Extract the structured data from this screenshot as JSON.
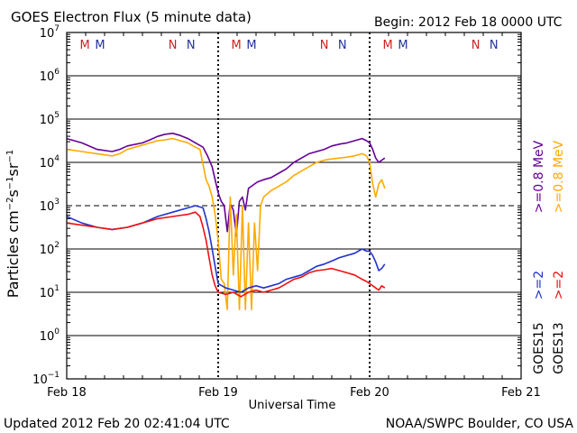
{
  "header": {
    "title": "GOES Electron Flux (5 minute data)",
    "begin": "Begin: 2012 Feb 18 0000 UTC"
  },
  "footer": {
    "updated": "Updated 2012 Feb 20 02:41:04 UTC",
    "credit": "NOAA/SWPC Boulder, CO USA"
  },
  "colors": {
    "goes15_2mev": "#2233cc",
    "goes13_2mev": "#ee1111",
    "goes15_08mev": "#660099",
    "goes13_08mev": "#ffaa00",
    "marker_m": "#cc2222",
    "marker_n_red": "#cc2222",
    "marker_n_blue": "#223399"
  },
  "chart_data": {
    "type": "line",
    "title": "GOES Electron Flux (5 minute data)",
    "xlabel": "Universal Time",
    "ylabel": "Particles cm⁻²s⁻¹sr⁻¹",
    "x_unit": "days since 2012 Feb 18 0000 UTC",
    "xlim": [
      0,
      3
    ],
    "ylim_log10": [
      -1,
      7
    ],
    "x_ticks": [
      {
        "x": 0,
        "label": "Feb 18"
      },
      {
        "x": 1,
        "label": "Feb 19"
      },
      {
        "x": 2,
        "label": "Feb 20"
      },
      {
        "x": 3,
        "label": "Feb 21"
      }
    ],
    "y_ticks": [
      {
        "exp": -1,
        "label": "10",
        "sup": "−1"
      },
      {
        "exp": 0,
        "label": "10",
        "sup": "0"
      },
      {
        "exp": 1,
        "label": "10",
        "sup": "1"
      },
      {
        "exp": 2,
        "label": "10",
        "sup": "2"
      },
      {
        "exp": 3,
        "label": "10",
        "sup": "3"
      },
      {
        "exp": 4,
        "label": "10",
        "sup": "4"
      },
      {
        "exp": 5,
        "label": "10",
        "sup": "5"
      },
      {
        "exp": 6,
        "label": "10",
        "sup": "6"
      },
      {
        "exp": 7,
        "label": "10",
        "sup": "7"
      }
    ],
    "threshold_log10": 3,
    "day_markers": [
      {
        "x": 0.12,
        "label": "M",
        "color": "#cc2222"
      },
      {
        "x": 0.22,
        "label": "M",
        "color": "#223399"
      },
      {
        "x": 0.7,
        "label": "N",
        "color": "#cc2222"
      },
      {
        "x": 0.82,
        "label": "N",
        "color": "#223399"
      },
      {
        "x": 1.12,
        "label": "M",
        "color": "#cc2222"
      },
      {
        "x": 1.22,
        "label": "M",
        "color": "#223399"
      },
      {
        "x": 1.7,
        "label": "N",
        "color": "#cc2222"
      },
      {
        "x": 1.82,
        "label": "N",
        "color": "#223399"
      },
      {
        "x": 2.12,
        "label": "M",
        "color": "#cc2222"
      },
      {
        "x": 2.22,
        "label": "M",
        "color": "#223399"
      },
      {
        "x": 2.7,
        "label": "N",
        "color": "#cc2222"
      },
      {
        "x": 2.82,
        "label": "N",
        "color": "#223399"
      }
    ],
    "legend": [
      {
        "label": ">=0.8 MeV",
        "color": "#660099",
        "group": "GOES15"
      },
      {
        "label": ">=0.8 MeV",
        "color": "#ffaa00",
        "group": "GOES13"
      },
      {
        "label": ">=2",
        "color": "#2233cc",
        "group": "GOES15"
      },
      {
        "label": ">=2",
        "color": "#ee1111",
        "group": "GOES13"
      }
    ],
    "legend_groups": [
      "GOES15",
      "GOES13"
    ],
    "series": [
      {
        "name": "GOES15 >=0.8 MeV",
        "color": "#660099",
        "x": [
          0.0,
          0.1,
          0.2,
          0.3,
          0.35,
          0.4,
          0.5,
          0.55,
          0.6,
          0.65,
          0.7,
          0.75,
          0.8,
          0.85,
          0.9,
          0.93,
          0.96,
          0.98,
          1.0,
          1.02,
          1.04,
          1.06,
          1.08,
          1.1,
          1.12,
          1.14,
          1.16,
          1.18,
          1.2,
          1.22,
          1.24,
          1.26,
          1.3,
          1.35,
          1.4,
          1.45,
          1.5,
          1.55,
          1.6,
          1.65,
          1.7,
          1.75,
          1.8,
          1.85,
          1.9,
          1.95,
          1.98,
          2.0,
          2.02,
          2.04,
          2.06,
          2.08,
          2.1
        ],
        "log10_values": [
          4.55,
          4.45,
          4.3,
          4.25,
          4.3,
          4.38,
          4.45,
          4.52,
          4.6,
          4.65,
          4.67,
          4.62,
          4.55,
          4.45,
          4.35,
          4.15,
          3.9,
          3.6,
          3.3,
          3.1,
          3.0,
          2.4,
          3.05,
          2.9,
          2.3,
          3.1,
          3.2,
          2.9,
          3.4,
          3.45,
          3.5,
          3.55,
          3.6,
          3.65,
          3.75,
          3.85,
          4.0,
          4.1,
          4.2,
          4.25,
          4.3,
          4.38,
          4.42,
          4.45,
          4.5,
          4.55,
          4.5,
          4.45,
          4.3,
          4.1,
          4.0,
          4.05,
          4.1
        ]
      },
      {
        "name": "GOES13 >=0.8 MeV",
        "color": "#ffaa00",
        "x": [
          0.0,
          0.1,
          0.2,
          0.3,
          0.35,
          0.4,
          0.5,
          0.55,
          0.6,
          0.65,
          0.7,
          0.75,
          0.8,
          0.85,
          0.88,
          0.9,
          0.92,
          0.94,
          0.96,
          0.98,
          1.0,
          1.02,
          1.04,
          1.06,
          1.08,
          1.1,
          1.12,
          1.14,
          1.16,
          1.18,
          1.2,
          1.22,
          1.24,
          1.26,
          1.28,
          1.3,
          1.35,
          1.4,
          1.45,
          1.5,
          1.55,
          1.6,
          1.65,
          1.7,
          1.75,
          1.8,
          1.85,
          1.9,
          1.95,
          1.98,
          2.0,
          2.02,
          2.04,
          2.06,
          2.08,
          2.1
        ],
        "log10_values": [
          4.3,
          4.25,
          4.2,
          4.15,
          4.2,
          4.3,
          4.4,
          4.45,
          4.5,
          4.52,
          4.55,
          4.5,
          4.45,
          4.35,
          4.3,
          3.95,
          3.6,
          3.45,
          3.2,
          2.8,
          2.2,
          1.3,
          1.2,
          0.6,
          3.2,
          1.4,
          2.8,
          0.6,
          3.0,
          0.6,
          2.6,
          0.6,
          2.6,
          1.5,
          3.0,
          3.2,
          3.35,
          3.45,
          3.55,
          3.7,
          3.8,
          3.9,
          4.0,
          4.05,
          4.08,
          4.1,
          4.12,
          4.15,
          4.2,
          4.15,
          4.0,
          3.5,
          3.2,
          3.5,
          3.6,
          3.4
        ]
      },
      {
        "name": "GOES15 >=2 MeV",
        "color": "#2233cc",
        "x": [
          0.0,
          0.1,
          0.2,
          0.3,
          0.4,
          0.5,
          0.6,
          0.7,
          0.8,
          0.85,
          0.9,
          0.92,
          0.94,
          0.96,
          0.98,
          1.0,
          1.05,
          1.1,
          1.15,
          1.2,
          1.25,
          1.3,
          1.35,
          1.4,
          1.45,
          1.5,
          1.55,
          1.6,
          1.65,
          1.7,
          1.75,
          1.8,
          1.85,
          1.9,
          1.95,
          1.98,
          2.0,
          2.02,
          2.04,
          2.06,
          2.08,
          2.1
        ],
        "log10_values": [
          2.75,
          2.6,
          2.5,
          2.45,
          2.5,
          2.6,
          2.75,
          2.85,
          2.95,
          3.0,
          2.95,
          2.7,
          2.4,
          2.0,
          1.6,
          1.2,
          1.1,
          1.05,
          1.0,
          1.1,
          1.15,
          1.1,
          1.15,
          1.2,
          1.3,
          1.35,
          1.4,
          1.5,
          1.6,
          1.65,
          1.72,
          1.8,
          1.85,
          1.9,
          2.0,
          1.95,
          1.95,
          1.85,
          1.7,
          1.5,
          1.55,
          1.65
        ]
      },
      {
        "name": "GOES13 >=2 MeV",
        "color": "#ee1111",
        "x": [
          0.0,
          0.1,
          0.2,
          0.3,
          0.4,
          0.5,
          0.6,
          0.7,
          0.8,
          0.85,
          0.88,
          0.9,
          0.92,
          0.94,
          0.96,
          0.98,
          1.0,
          1.05,
          1.1,
          1.15,
          1.2,
          1.25,
          1.3,
          1.35,
          1.4,
          1.45,
          1.5,
          1.55,
          1.6,
          1.65,
          1.7,
          1.75,
          1.8,
          1.85,
          1.9,
          1.95,
          1.98,
          2.0,
          2.02,
          2.04,
          2.06,
          2.08,
          2.1
        ],
        "log10_values": [
          2.6,
          2.55,
          2.5,
          2.45,
          2.5,
          2.6,
          2.7,
          2.75,
          2.8,
          2.85,
          2.75,
          2.5,
          2.2,
          1.8,
          1.4,
          1.15,
          1.0,
          0.95,
          1.0,
          0.9,
          1.0,
          1.05,
          1.0,
          1.05,
          1.1,
          1.2,
          1.3,
          1.35,
          1.45,
          1.5,
          1.52,
          1.55,
          1.5,
          1.45,
          1.4,
          1.3,
          1.25,
          1.2,
          1.15,
          1.1,
          1.05,
          1.15,
          1.1
        ]
      }
    ]
  }
}
